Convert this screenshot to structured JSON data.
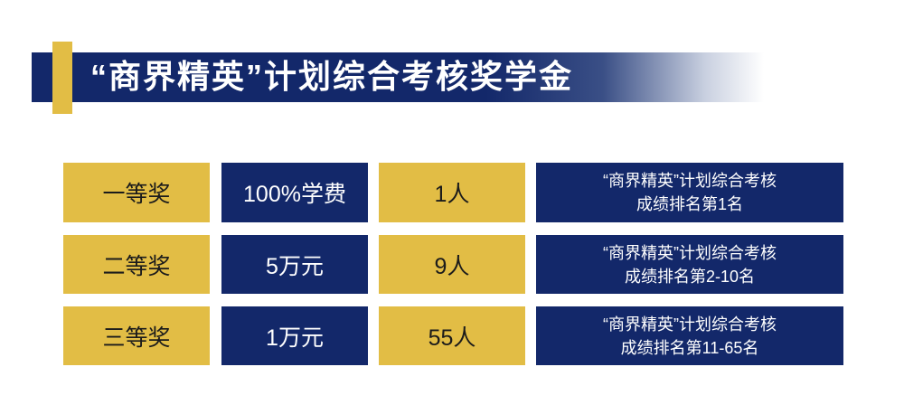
{
  "title": "“商界精英”计划综合考核奖学金",
  "colors": {
    "gold": "#e2bd45",
    "navy": "#13286a"
  },
  "rows": [
    {
      "prize": "一等奖",
      "amount": "100%学费",
      "count": "1人",
      "criteria_line1": "“商界精英”计划综合考核",
      "criteria_line2": "成绩排名第1名"
    },
    {
      "prize": "二等奖",
      "amount": "5万元",
      "count": "9人",
      "criteria_line1": "“商界精英”计划综合考核",
      "criteria_line2": "成绩排名第2-10名"
    },
    {
      "prize": "三等奖",
      "amount": "1万元",
      "count": "55人",
      "criteria_line1": "“商界精英”计划综合考核",
      "criteria_line2": "成绩排名第11-65名"
    }
  ]
}
